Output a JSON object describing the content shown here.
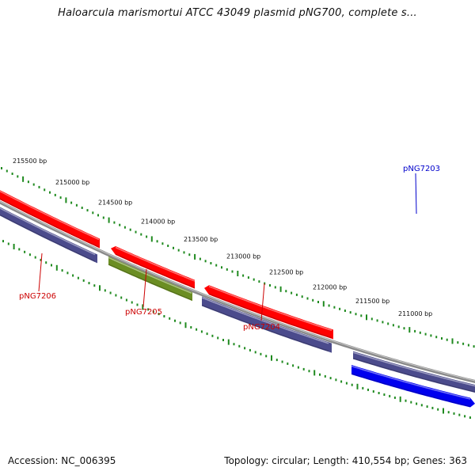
{
  "title": "Haloarcula marismortui ATCC 43049 plasmid pNG700, complete s...",
  "footer": {
    "accession": "Accession: NC_006395",
    "summary": "Topology: circular; Length: 410,554 bp; Genes: 363"
  },
  "colors": {
    "background": "#ffffff",
    "backbone": "#8a8a8a",
    "tick_green": "#1f8a1f",
    "gene_red": "#ff0000",
    "gene_purple": "#4b4b8c",
    "gene_olive": "#6b8e23",
    "gene_blue": "#0000ee",
    "label_red": "#cc0000",
    "label_blue": "#0000cc"
  },
  "ruler": {
    "labels": [
      "215500 bp",
      "215000 bp",
      "214500 bp",
      "214000 bp",
      "213500 bp",
      "213000 bp",
      "212500 bp",
      "212000 bp",
      "211500 bp",
      "211000 bp"
    ]
  },
  "gene_labels": [
    {
      "text": "pNG7203",
      "color": "blue"
    },
    {
      "text": "pNG7204",
      "color": "red"
    },
    {
      "text": "pNG7205",
      "color": "red"
    },
    {
      "text": "pNG7206",
      "color": "red"
    }
  ]
}
